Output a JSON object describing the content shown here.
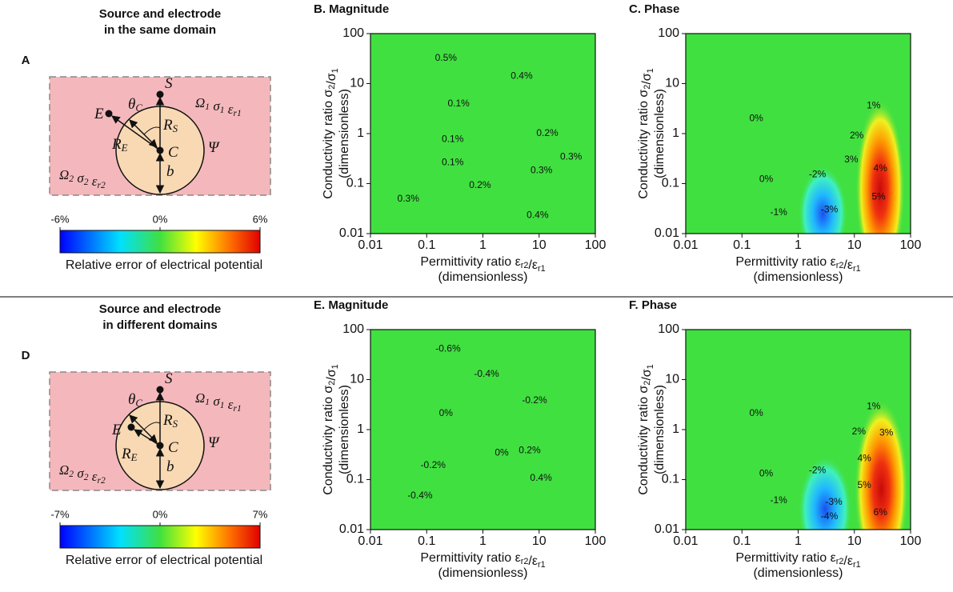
{
  "panels": [
    {
      "title_lines": [
        "Source and electrode",
        "in the same domain"
      ],
      "letter": "A",
      "labels": {
        "S": [
          {
            "t": "S"
          }
        ],
        "E": [
          {
            "t": "E"
          }
        ],
        "C": [
          {
            "t": "C"
          }
        ],
        "theta": [
          {
            "t": "θ",
            "sub": "C"
          }
        ],
        "RS": [
          {
            "t": "R",
            "sub": "S"
          }
        ],
        "RE": [
          {
            "t": "R",
            "sub": "E"
          }
        ],
        "b": [
          {
            "t": "b"
          }
        ],
        "psi": [
          {
            "t": "Ψ"
          }
        ],
        "omega1": [
          {
            "t": "Ω",
            "sub": "1"
          },
          {
            "t": " σ",
            "sub": "1"
          },
          {
            "t": " ε",
            "sub": "r1"
          }
        ],
        "omega2": [
          {
            "t": "Ω",
            "sub": "2"
          },
          {
            "t": " σ",
            "sub": "2"
          },
          {
            "t": " ε",
            "sub": "r2"
          }
        ]
      },
      "colorbar": {
        "ticks": [
          {
            "value": -6,
            "label": "-6%"
          },
          {
            "value": 0,
            "label": "0%"
          },
          {
            "value": 6,
            "label": "6%"
          }
        ],
        "caption": "Relative error of electrical potential"
      }
    },
    {
      "title_lines": [
        "Source and electrode",
        "in different domains"
      ],
      "letter": "D",
      "labels": {
        "S": [
          {
            "t": "S"
          }
        ],
        "E": [
          {
            "t": "E"
          }
        ],
        "C": [
          {
            "t": "C"
          }
        ],
        "theta": [
          {
            "t": "θ",
            "sub": "C"
          }
        ],
        "RS": [
          {
            "t": "R",
            "sub": "S"
          }
        ],
        "RE": [
          {
            "t": "R",
            "sub": "E"
          }
        ],
        "b": [
          {
            "t": "b"
          }
        ],
        "psi": [
          {
            "t": "Ψ"
          }
        ],
        "omega1": [
          {
            "t": "Ω",
            "sub": "1"
          },
          {
            "t": " σ",
            "sub": "1"
          },
          {
            "t": " ε",
            "sub": "r1"
          }
        ],
        "omega2": [
          {
            "t": "Ω",
            "sub": "2"
          },
          {
            "t": " σ",
            "sub": "2"
          },
          {
            "t": " ε",
            "sub": "r2"
          }
        ]
      },
      "colorbar": {
        "ticks": [
          {
            "value": -7,
            "label": "-7%"
          },
          {
            "value": 0,
            "label": "0%"
          },
          {
            "value": 7,
            "label": "7%"
          }
        ],
        "caption": "Relative error of electrical potential"
      }
    }
  ],
  "chart_data": [
    {
      "type": "contour",
      "title": "B. Magnitude",
      "color": "#40e040",
      "x_label": [
        {
          "t": "Permittivity ratio ε",
          "sub": "r2"
        },
        {
          "t": "/ε",
          "sub": "r1"
        }
      ],
      "x_label_2": "(dimensionless)",
      "y_label": [
        {
          "t": "Conductivity ratio σ",
          "sub": "2"
        },
        {
          "t": "/σ",
          "sub": "1"
        }
      ],
      "y_label_2": "(dimensionless)",
      "xlim": [
        0.01,
        100
      ],
      "ylim": [
        0.01,
        100
      ],
      "xticks": [
        0.01,
        0.1,
        1,
        10,
        100
      ],
      "yticks": [
        0.01,
        0.1,
        1,
        10,
        100
      ],
      "log_x": true,
      "log_y": true,
      "contour_labels": [
        {
          "text": "0.5%",
          "x": 0.22,
          "y": 32
        },
        {
          "text": "0.4%",
          "x": 4.9,
          "y": 14
        },
        {
          "text": "0.1%",
          "x": 0.37,
          "y": 3.9
        },
        {
          "text": "0.2%",
          "x": 14,
          "y": 1
        },
        {
          "text": "0.1%",
          "x": 0.29,
          "y": 0.77
        },
        {
          "text": "0.3%",
          "x": 37,
          "y": 0.34
        },
        {
          "text": "0.1%",
          "x": 0.29,
          "y": 0.26
        },
        {
          "text": "0.3%",
          "x": 11,
          "y": 0.18
        },
        {
          "text": "0.2%",
          "x": 0.89,
          "y": 0.091
        },
        {
          "text": "0.3%",
          "x": 0.047,
          "y": 0.049
        },
        {
          "text": "0.4%",
          "x": 9.4,
          "y": 0.023
        }
      ]
    },
    {
      "type": "contour",
      "title": "C. Phase",
      "color": "#40e040",
      "x_label": [
        {
          "t": "Permittivity ratio ε",
          "sub": "r2"
        },
        {
          "t": "/ε",
          "sub": "r1"
        }
      ],
      "x_label_2": "(dimensionless)",
      "y_label": [
        {
          "t": "Conductivity ratio σ",
          "sub": "2"
        },
        {
          "t": "/σ",
          "sub": "1"
        }
      ],
      "y_label_2": "(dimensionless)",
      "xlim": [
        0.01,
        100
      ],
      "ylim": [
        0.01,
        100
      ],
      "xticks": [
        0.01,
        0.1,
        1,
        10,
        100
      ],
      "yticks": [
        0.01,
        0.1,
        1,
        10,
        100
      ],
      "log_x": true,
      "log_y": true,
      "contour_labels": [
        {
          "text": "0%",
          "x": 0.18,
          "y": 2
        },
        {
          "text": "1%",
          "x": 22,
          "y": 3.6
        },
        {
          "text": "2%",
          "x": 11,
          "y": 0.9
        },
        {
          "text": "3%",
          "x": 8.8,
          "y": 0.3
        },
        {
          "text": "4%",
          "x": 29,
          "y": 0.2
        },
        {
          "text": "0%",
          "x": 0.27,
          "y": 0.12
        },
        {
          "text": "-2%",
          "x": 2.2,
          "y": 0.15
        },
        {
          "text": "5%",
          "x": 27,
          "y": 0.054
        },
        {
          "text": "-1%",
          "x": 0.45,
          "y": 0.026
        },
        {
          "text": "-3%",
          "x": 3.6,
          "y": 0.03
        }
      ]
    },
    {
      "type": "contour",
      "title": "E. Magnitude",
      "color": "#40e040",
      "x_label": [
        {
          "t": "Permittivity ratio ε",
          "sub": "r2"
        },
        {
          "t": "/ε",
          "sub": "r1"
        }
      ],
      "x_label_2": "(dimensionless)",
      "y_label": [
        {
          "t": "Conductivity ratio σ",
          "sub": "2"
        },
        {
          "t": "/σ",
          "sub": "1"
        }
      ],
      "y_label_2": "(dimensionless)",
      "xlim": [
        0.01,
        100
      ],
      "ylim": [
        0.01,
        100
      ],
      "xticks": [
        0.01,
        0.1,
        1,
        10,
        100
      ],
      "yticks": [
        0.01,
        0.1,
        1,
        10,
        100
      ],
      "log_x": true,
      "log_y": true,
      "contour_labels": [
        {
          "text": "-0.6%",
          "x": 0.24,
          "y": 41
        },
        {
          "text": "-0.4%",
          "x": 1.16,
          "y": 12.7
        },
        {
          "text": "-0.2%",
          "x": 8.3,
          "y": 3.8
        },
        {
          "text": "0%",
          "x": 0.22,
          "y": 2.1
        },
        {
          "text": "0%",
          "x": 2.16,
          "y": 0.34
        },
        {
          "text": "0.2%",
          "x": 6.8,
          "y": 0.38
        },
        {
          "text": "-0.2%",
          "x": 0.13,
          "y": 0.19
        },
        {
          "text": "0.4%",
          "x": 10.8,
          "y": 0.106
        },
        {
          "text": "-0.4%",
          "x": 0.076,
          "y": 0.047
        }
      ]
    },
    {
      "type": "contour",
      "title": "F. Phase",
      "color": "#40e040",
      "x_label": [
        {
          "t": "Permittivity ratio ε",
          "sub": "r2"
        },
        {
          "t": "/ε",
          "sub": "r1"
        }
      ],
      "x_label_2": "(dimensionless)",
      "y_label": [
        {
          "t": "Conductivity ratio σ",
          "sub": "2"
        },
        {
          "t": "/σ",
          "sub": "1"
        }
      ],
      "y_label_2": "(dimensionless)",
      "xlim": [
        0.01,
        100
      ],
      "ylim": [
        0.01,
        100
      ],
      "xticks": [
        0.01,
        0.1,
        1,
        10,
        100
      ],
      "yticks": [
        0.01,
        0.1,
        1,
        10,
        100
      ],
      "log_x": true,
      "log_y": true,
      "contour_labels": [
        {
          "text": "0%",
          "x": 0.18,
          "y": 2.1
        },
        {
          "text": "1%",
          "x": 22,
          "y": 2.9
        },
        {
          "text": "2%",
          "x": 12,
          "y": 0.9
        },
        {
          "text": "3%",
          "x": 37,
          "y": 0.86
        },
        {
          "text": "4%",
          "x": 15,
          "y": 0.26
        },
        {
          "text": "0%",
          "x": 0.27,
          "y": 0.13
        },
        {
          "text": "-2%",
          "x": 2.2,
          "y": 0.15
        },
        {
          "text": "5%",
          "x": 15,
          "y": 0.076
        },
        {
          "text": "-3%",
          "x": 4.3,
          "y": 0.035
        },
        {
          "text": "-1%",
          "x": 0.45,
          "y": 0.038
        },
        {
          "text": "-4%",
          "x": 3.6,
          "y": 0.018
        },
        {
          "text": "6%",
          "x": 29,
          "y": 0.022
        }
      ]
    }
  ]
}
